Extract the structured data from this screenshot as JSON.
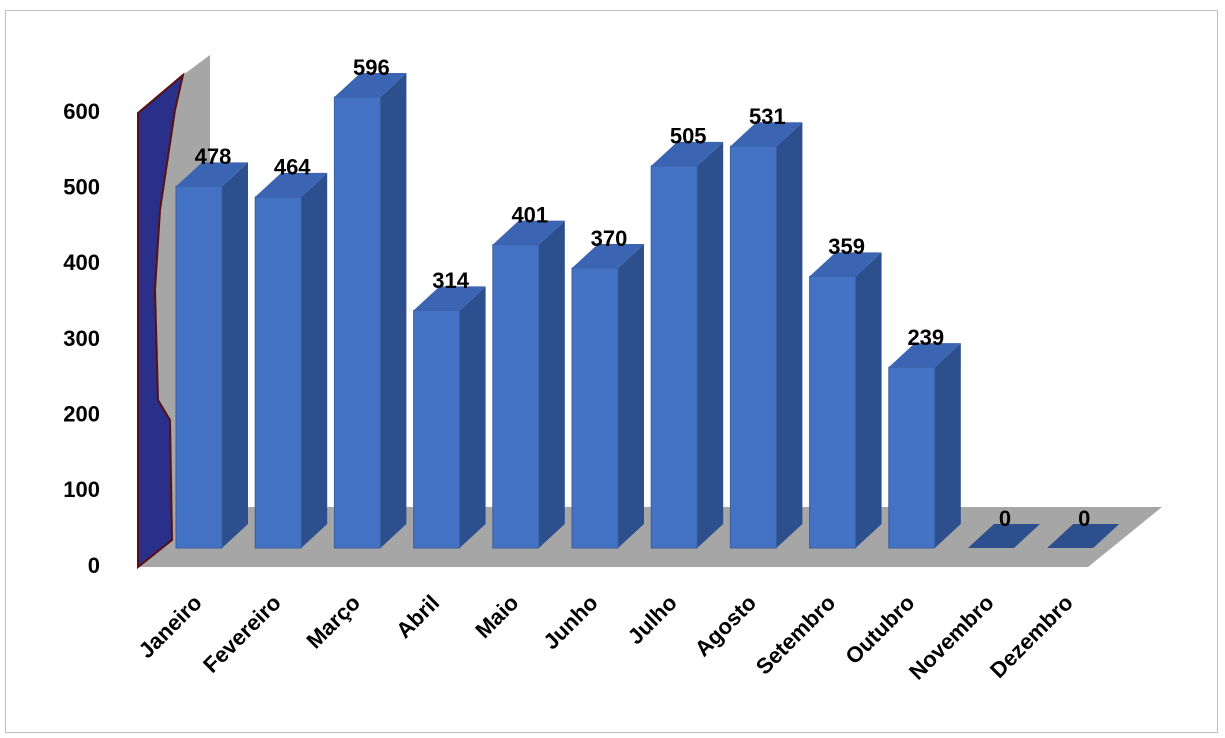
{
  "chart_data": {
    "type": "bar3d",
    "categories": [
      "Janeiro",
      "Fevereiro",
      "Março",
      "Abril",
      "Maio",
      "Junho",
      "Julho",
      "Agosto",
      "Setembro",
      "Outubro",
      "Novembro",
      "Dezembro"
    ],
    "values": [
      478,
      464,
      596,
      314,
      401,
      370,
      505,
      531,
      359,
      239,
      0,
      0
    ],
    "color": "#4472c4",
    "ylim": [
      0,
      600
    ],
    "yticks": [
      0,
      100,
      200,
      300,
      400,
      500,
      600
    ]
  }
}
